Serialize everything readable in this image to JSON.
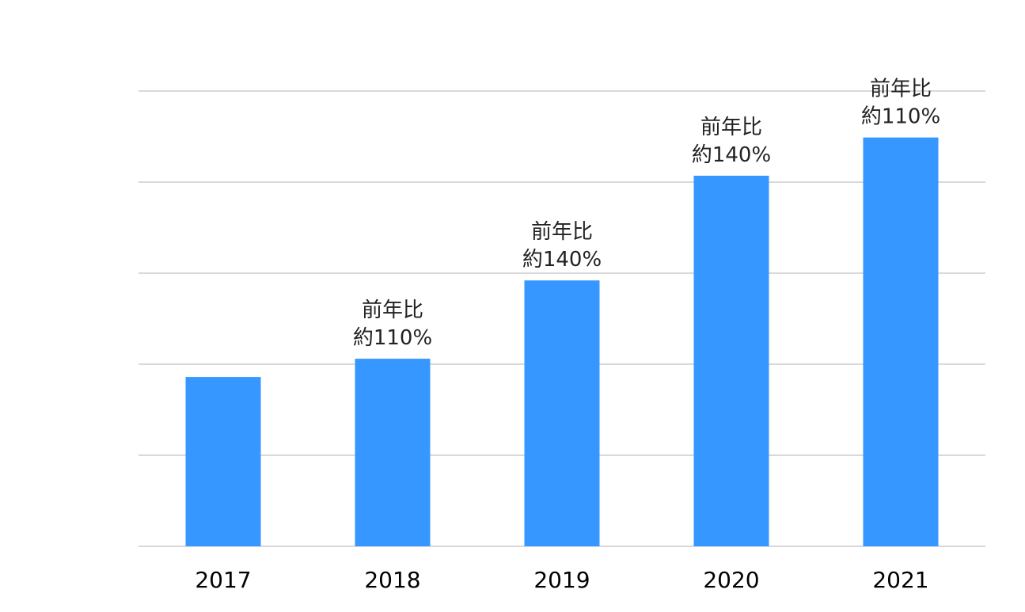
{
  "chart_data": {
    "type": "bar",
    "categories": [
      "2017",
      "2018",
      "2019",
      "2020",
      "2021"
    ],
    "values": [
      1.86,
      2.06,
      2.92,
      4.07,
      4.49
    ],
    "ylim": [
      0,
      5
    ],
    "grid": true,
    "y_tick_labels_visible": false,
    "bar_color": "#3597ff",
    "data_labels": [
      "",
      "前年比\n約110%",
      "前年比\n約140%",
      "前年比\n約140%",
      "前年比\n約110%"
    ],
    "title": "",
    "xlabel": "",
    "ylabel": ""
  }
}
